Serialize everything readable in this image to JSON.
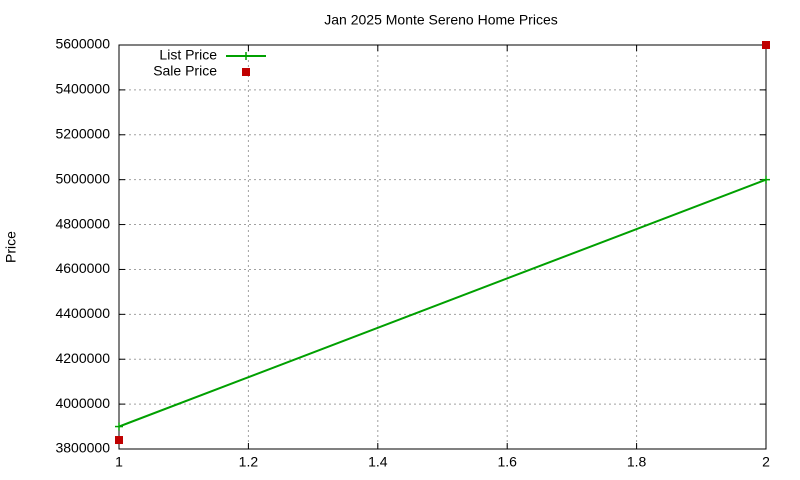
{
  "chart_data": {
    "type": "line",
    "title": "Jan 2025 Monte Sereno Home Prices",
    "y_label": "Price",
    "x": [
      1,
      2
    ],
    "series": [
      {
        "name": "List Price",
        "color": "#00a000",
        "line": true,
        "marker": "plus",
        "values": [
          3900000,
          5000000
        ]
      },
      {
        "name": "Sale Price",
        "color": "#c00000",
        "line": false,
        "marker": "square",
        "values": [
          3840000,
          5600000
        ]
      }
    ],
    "xlim": [
      1,
      2
    ],
    "xticks": [
      1,
      1.2,
      1.4,
      1.6,
      1.8,
      2
    ],
    "ylim": [
      3800000,
      5600000
    ],
    "yticks": [
      3800000,
      4000000,
      4200000,
      4400000,
      4600000,
      4800000,
      5000000,
      5200000,
      5400000,
      5600000
    ],
    "grid": true,
    "legend": "top-left"
  }
}
